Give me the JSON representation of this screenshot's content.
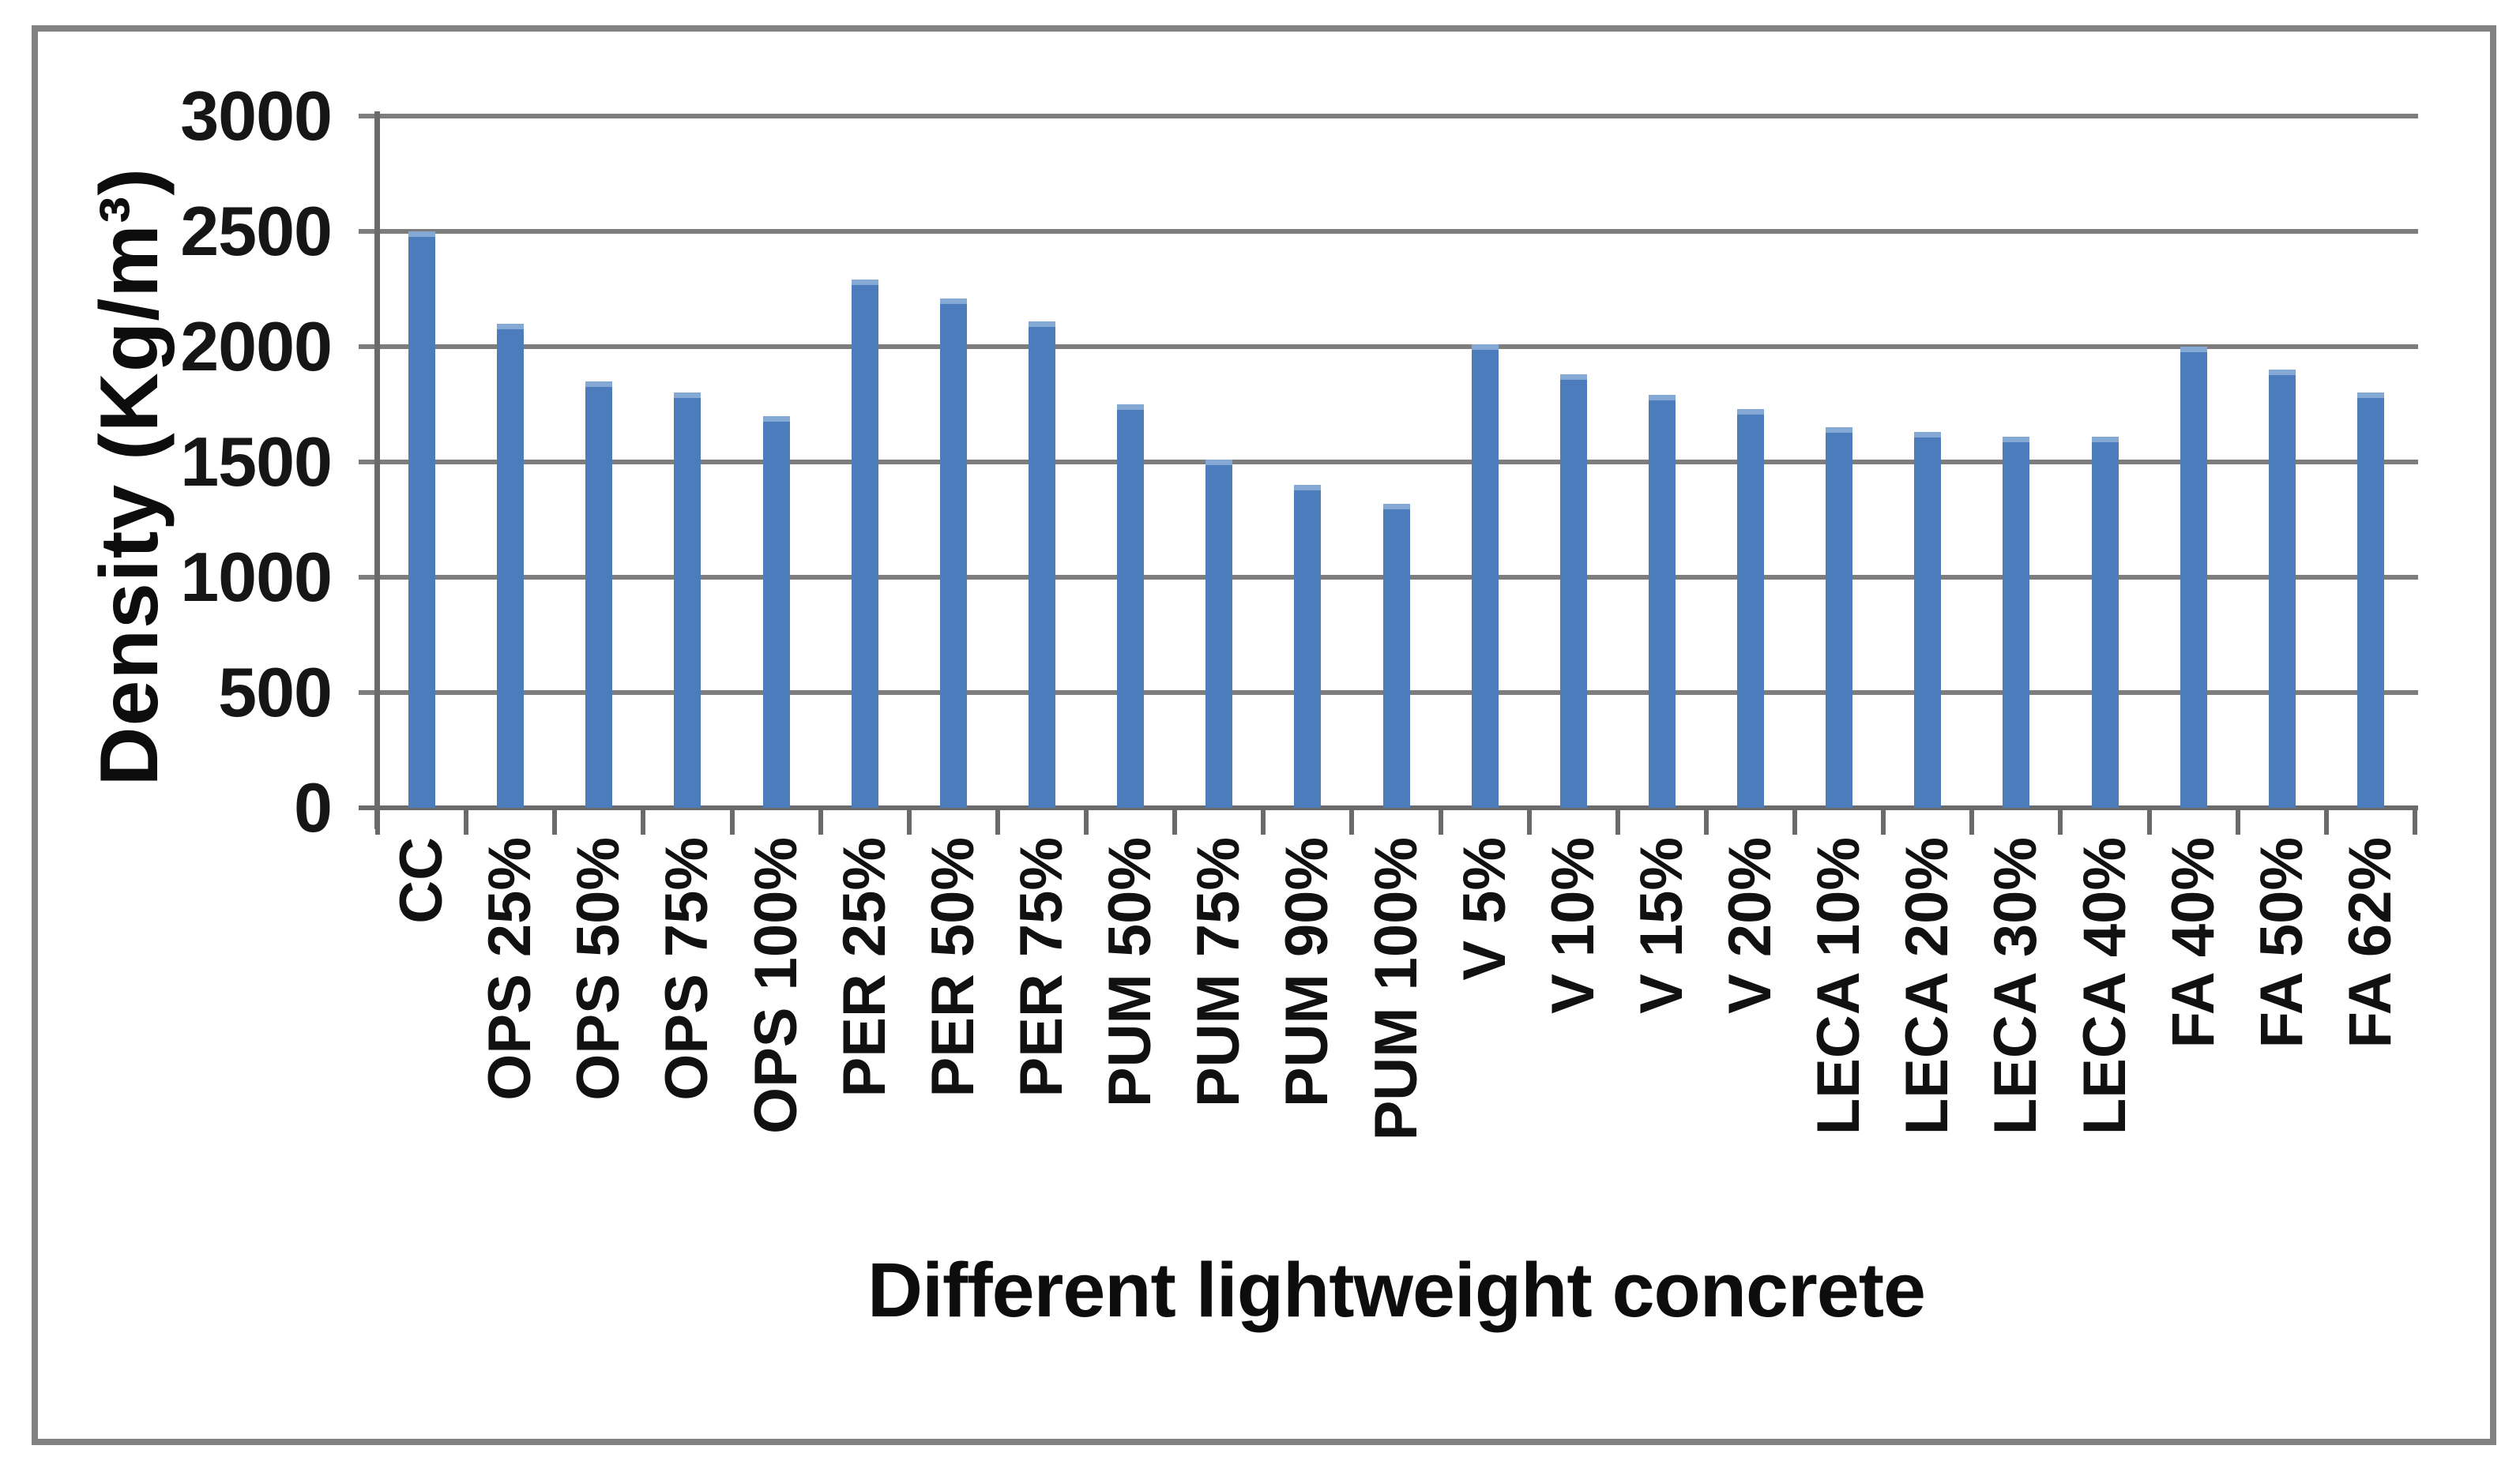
{
  "figure": {
    "background": "#ffffff",
    "border_color": "#828282"
  },
  "chart_data": {
    "type": "bar",
    "title": "",
    "categories": [
      "CC",
      "OPS 25%",
      "OPS 50%",
      "OPS 75%",
      "OPS 100%",
      "PER 25%",
      "PER 50%",
      "PER 75%",
      "PUM 50%",
      "PUM 75%",
      "PUM 90%",
      "PUM 100%",
      "V 5%",
      "V 10%",
      "V 15%",
      "V 20%",
      "LECA 10%",
      "LECA 20%",
      "LECA 30%",
      "LECA 40%",
      "FA 40%",
      "FA 50%",
      "FA 62%"
    ],
    "values": [
      2500,
      2100,
      1850,
      1800,
      1700,
      2290,
      2210,
      2110,
      1750,
      1510,
      1400,
      1320,
      2010,
      1880,
      1790,
      1730,
      1650,
      1630,
      1610,
      1610,
      2000,
      1900,
      1800
    ],
    "xlabel": "Different lightweight concrete",
    "ylabel": "Density (Kg/m³)",
    "ylim": [
      0,
      3000
    ],
    "ytick_step": 500,
    "yticks": [
      0,
      500,
      1000,
      1500,
      2000,
      2500,
      3000
    ],
    "grid": true,
    "legend_position": "none",
    "bar_color": "#4C7CBC",
    "bar_cap_color": "#85A9D5",
    "gridline_color": "#7D7D7D",
    "axis_color": "#6A6A6A",
    "text_color": "#141414"
  }
}
